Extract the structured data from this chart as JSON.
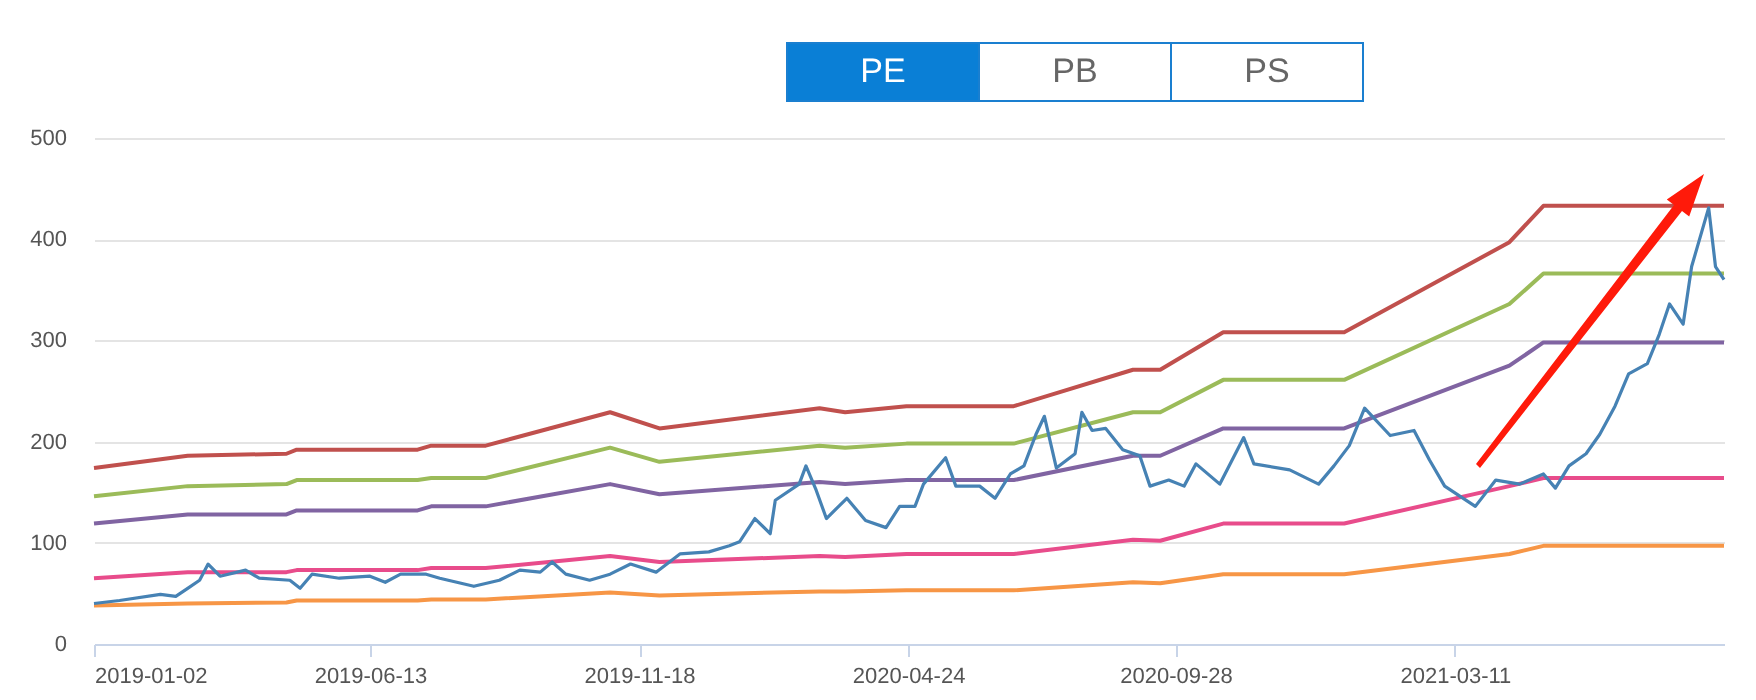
{
  "chart_data": {
    "type": "line",
    "annotations": [
      "PE",
      "PB",
      "PS"
    ],
    "x": [
      "2019-01-02",
      "2019-02-26",
      "2019-04-25",
      "2019-05-01",
      "2019-07-11",
      "2019-07-19",
      "2019-08-20",
      "2019-11-01",
      "2019-11-30",
      "2020-03-03",
      "2020-03-18",
      "2020-04-23",
      "2020-06-25",
      "2020-09-03",
      "2020-09-19",
      "2020-10-26",
      "2021-01-05",
      "2021-04-12",
      "2021-05-02",
      "2021-08-16"
    ],
    "xlim": [
      "2019-01-02",
      "2021-08-16"
    ],
    "xticks": [
      "2019-01-02",
      "2019-06-13",
      "2019-11-18",
      "2020-04-24",
      "2020-09-28",
      "2021-03-11"
    ],
    "ylim": [
      0,
      500
    ],
    "yticks": [
      0,
      100,
      200,
      300,
      400,
      500
    ],
    "grid": "y",
    "series": [
      {
        "color": "#c0504d",
        "values": [
          174,
          186,
          188,
          192,
          192,
          196,
          196,
          229,
          213,
          233,
          229,
          235,
          235,
          271,
          271,
          308,
          308,
          397,
          433,
          433
        ]
      },
      {
        "color": "#9bbb59",
        "values": [
          146,
          156,
          158,
          162,
          162,
          164,
          164,
          194,
          180,
          196,
          194,
          198,
          198,
          229,
          229,
          261,
          261,
          336,
          366,
          366
        ]
      },
      {
        "color": "#8064a2",
        "values": [
          119,
          128,
          128,
          132,
          132,
          136,
          136,
          158,
          148,
          160,
          158,
          162,
          162,
          186,
          186,
          213,
          213,
          275,
          298,
          298
        ]
      },
      {
        "color": "#e84c8b",
        "values": [
          65,
          71,
          71,
          73,
          73,
          75,
          75,
          87,
          81,
          87,
          86,
          89,
          89,
          103,
          102,
          119,
          119,
          156,
          164,
          164
        ]
      },
      {
        "color": "#f79646",
        "values": [
          38,
          40,
          41,
          43,
          43,
          44,
          44,
          51,
          48,
          52,
          52,
          53,
          53,
          61,
          60,
          69,
          69,
          89,
          97,
          97
        ]
      },
      {
        "color": "#4682b4",
        "x": [
          "2019-01-02",
          "2019-01-17",
          "2019-02-10",
          "2019-02-19",
          "2019-02-26",
          "2019-03-05",
          "2019-03-10",
          "2019-03-17",
          "2019-04-01",
          "2019-04-09",
          "2019-04-27",
          "2019-05-03",
          "2019-05-10",
          "2019-05-26",
          "2019-06-13",
          "2019-06-22",
          "2019-07-01",
          "2019-07-16",
          "2019-07-24",
          "2019-08-13",
          "2019-08-28",
          "2019-09-09",
          "2019-09-21",
          "2019-09-28",
          "2019-10-06",
          "2019-10-20",
          "2019-11-01",
          "2019-11-13",
          "2019-11-28",
          "2019-12-12",
          "2019-12-29",
          "2020-01-10",
          "2020-01-16",
          "2020-01-25",
          "2020-02-03",
          "2020-02-06",
          "2020-02-20",
          "2020-02-24",
          "2020-03-01",
          "2020-03-07",
          "2020-03-19",
          "2020-03-30",
          "2020-04-11",
          "2020-04-19",
          "2020-04-28",
          "2020-05-03",
          "2020-05-16",
          "2020-05-22",
          "2020-06-05",
          "2020-06-14",
          "2020-06-23",
          "2020-07-01",
          "2020-07-08",
          "2020-07-13",
          "2020-07-20",
          "2020-07-31",
          "2020-08-04",
          "2020-08-10",
          "2020-08-18",
          "2020-08-28",
          "2020-09-07",
          "2020-09-13",
          "2020-09-24",
          "2020-10-03",
          "2020-10-10",
          "2020-10-24",
          "2020-11-07",
          "2020-11-13",
          "2020-12-04",
          "2020-12-21",
          "2020-12-30",
          "2021-01-08",
          "2021-01-17",
          "2021-02-01",
          "2021-02-15",
          "2021-02-24",
          "2021-03-05",
          "2021-03-23",
          "2021-04-04",
          "2021-04-18",
          "2021-05-02",
          "2021-05-09",
          "2021-05-17",
          "2021-05-27",
          "2021-06-04",
          "2021-06-13",
          "2021-06-21",
          "2021-07-02",
          "2021-07-09",
          "2021-07-15",
          "2021-07-23",
          "2021-07-28",
          "2021-08-07",
          "2021-08-11",
          "2021-08-16"
        ],
        "values": [
          40,
          43,
          49,
          47,
          55,
          63,
          79,
          67,
          73,
          65,
          63,
          55,
          69,
          65,
          67,
          61,
          69,
          69,
          65,
          57,
          63,
          73,
          71,
          81,
          69,
          63,
          69,
          79,
          71,
          89,
          91,
          97,
          101,
          124,
          109,
          142,
          158,
          176,
          152,
          124,
          144,
          122,
          115,
          136,
          136,
          158,
          184,
          156,
          156,
          144,
          168,
          176,
          207,
          225,
          174,
          188,
          229,
          211,
          213,
          192,
          186,
          156,
          162,
          156,
          178,
          158,
          204,
          178,
          172,
          158,
          176,
          196,
          233,
          206,
          211,
          182,
          156,
          136,
          162,
          158,
          168,
          154,
          176,
          188,
          207,
          235,
          267,
          277,
          306,
          336,
          316,
          373,
          431,
          373,
          360
        ]
      }
    ]
  }
}
